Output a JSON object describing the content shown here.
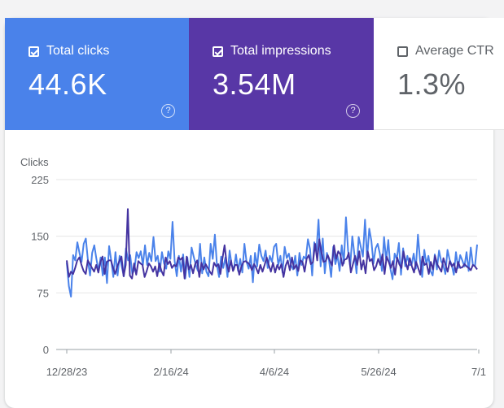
{
  "metrics": [
    {
      "label": "Total clicks",
      "value": "44.6K",
      "checked": true,
      "color": "#4a82ea"
    },
    {
      "label": "Total impressions",
      "value": "3.54M",
      "checked": true,
      "color": "#5837a6"
    },
    {
      "label": "Average CTR",
      "value": "1.3%",
      "checked": false,
      "color": "#ffffff"
    }
  ],
  "help_glyph": "?",
  "chart_data": {
    "type": "line",
    "ylabel": "Clicks",
    "ylim": [
      0,
      225
    ],
    "yticks": [
      0,
      75,
      150,
      225
    ],
    "xtick_labels": [
      "12/28/23",
      "2/16/24",
      "4/6/24",
      "5/26/24",
      "7/1"
    ],
    "grid": true,
    "series": [
      {
        "color": "#4a82ea",
        "values": [
          115,
          84,
          70,
          125,
          118,
          142,
          128,
          116,
          140,
          147,
          118,
          98,
          128,
          138,
          120,
          104,
          122,
          98,
          122,
          88,
          137,
          118,
          96,
          129,
          98,
          124,
          110,
          97,
          134,
          118,
          125,
          100,
          106,
          129,
          121,
          130,
          112,
          138,
          112,
          128,
          117,
          149,
          117,
          124,
          103,
          129,
          114,
          107,
          130,
          120,
          169,
          117,
          97,
          124,
          103,
          126,
          94,
          122,
          96,
          135,
          123,
          112,
          104,
          140,
          101,
          122,
          103,
          97,
          140,
          120,
          152,
          111,
          96,
          123,
          108,
          122,
          96,
          131,
          112,
          106,
          126,
          104,
          120,
          102,
          140,
          116,
          107,
          124,
          89,
          128,
          110,
          139,
          124,
          117,
          131,
          108,
          124,
          116,
          136,
          140,
          112,
          124,
          102,
          136,
          121,
          127,
          112,
          106,
          124,
          98,
          128,
          112,
          123,
          120,
          146,
          133,
          98,
          142,
          130,
          172,
          110,
          147,
          101,
          128,
          118,
          96,
          136,
          113,
          124,
          104,
          138,
          114,
          175,
          131,
          110,
          150,
          126,
          101,
          149,
          136,
          123,
          172,
          120,
          160,
          144,
          114,
          134,
          140,
          127,
          104,
          149,
          118,
          145,
          107,
          93,
          127,
          120,
          141,
          99,
          134,
          110,
          124,
          112,
          112,
          127,
          107,
          152,
          118,
          96,
          132,
          113,
          124,
          104,
          98,
          126,
          106,
          131,
          117,
          112,
          100,
          132,
          119,
          112,
          99,
          129,
          108,
          125,
          118,
          110,
          129,
          104,
          135,
          112,
          111,
          139
        ]
      },
      {
        "color": "#4433a0",
        "values": [
          118,
          96,
          103,
          100,
          108,
          118,
          122,
          112,
          104,
          100,
          118,
          113,
          108,
          103,
          112,
          102,
          116,
          123,
          100,
          116,
          118,
          118,
          108,
          100,
          110,
          117,
          123,
          97,
          112,
          186,
          98,
          94,
          114,
          99,
          117,
          114,
          112,
          96,
          104,
          114,
          110,
          103,
          110,
          97,
          114,
          104,
          98,
          122,
          113,
          117,
          108,
          112,
          110,
          122,
          119,
          122,
          94,
          123,
          106,
          112,
          101,
          113,
          118,
          96,
          115,
          106,
          113,
          108,
          103,
          99,
          115,
          110,
          113,
          100,
          121,
          138,
          114,
          103,
          118,
          104,
          112,
          112,
          99,
          110,
          116,
          117,
          115,
          112,
          105,
          113,
          108,
          101,
          112,
          103,
          112,
          122,
          112,
          103,
          115,
          102,
          112,
          106,
          113,
          96,
          111,
          118,
          105,
          122,
          107,
          112,
          104,
          118,
          116,
          103,
          120,
          125,
          113,
          116,
          140,
          118,
          146,
          129,
          116,
          117,
          125,
          118,
          111,
          138,
          120,
          130,
          126,
          111,
          119,
          120,
          128,
          102,
          113,
          124,
          112,
          130,
          106,
          118,
          101,
          130,
          117,
          120,
          105,
          110,
          120,
          112,
          126,
          100,
          123,
          116,
          108,
          117,
          99,
          122,
          113,
          108,
          130,
          116,
          106,
          121,
          110,
          102,
          116,
          108,
          99,
          123,
          112,
          114,
          100,
          116,
          106,
          124,
          113,
          108,
          103,
          121,
          112,
          103,
          117,
          110,
          114,
          102,
          116,
          108,
          109,
          113,
          110,
          108,
          105,
          112,
          110,
          106
        ]
      }
    ]
  }
}
